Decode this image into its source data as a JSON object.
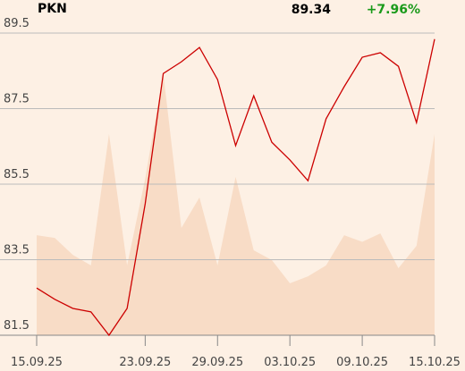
{
  "chart_data": {
    "type": "line",
    "title": "PKN",
    "last_price": "89.34",
    "change": "+7.96%",
    "categories": [
      "15.09.25",
      null,
      null,
      null,
      null,
      null,
      "23.09.25",
      null,
      null,
      null,
      "29.09.25",
      null,
      null,
      null,
      "03.10.25",
      null,
      null,
      null,
      "09.10.25",
      null,
      null,
      null,
      "15.10.25"
    ],
    "series": [
      {
        "type": "line",
        "color": "#cc0000",
        "values": [
          82.75,
          82.45,
          82.21,
          82.12,
          81.5,
          82.21,
          84.98,
          88.43,
          88.74,
          89.12,
          88.27,
          86.52,
          87.84,
          86.61,
          86.14,
          85.59,
          87.23,
          88.08,
          88.86,
          88.98,
          88.62,
          87.13,
          89.34
        ]
      },
      {
        "type": "area",
        "axis": "y2",
        "color": "#f8dcc6",
        "values": [
          33.1,
          32.2,
          26.6,
          23.1,
          66.6,
          23.1,
          51.8,
          86.7,
          35.5,
          45.6,
          23.1,
          52.4,
          28.1,
          24.9,
          17.2,
          19.5,
          23.1,
          33.1,
          30.9,
          33.7,
          22.2,
          29.6,
          66.6
        ]
      }
    ],
    "ylim": [
      81.5,
      89.5
    ],
    "yticks": [
      81.5,
      83.5,
      85.5,
      87.5,
      89.5
    ],
    "y2lim": [
      0,
      100
    ],
    "grid": true,
    "change_color": "#1a9a1a"
  }
}
